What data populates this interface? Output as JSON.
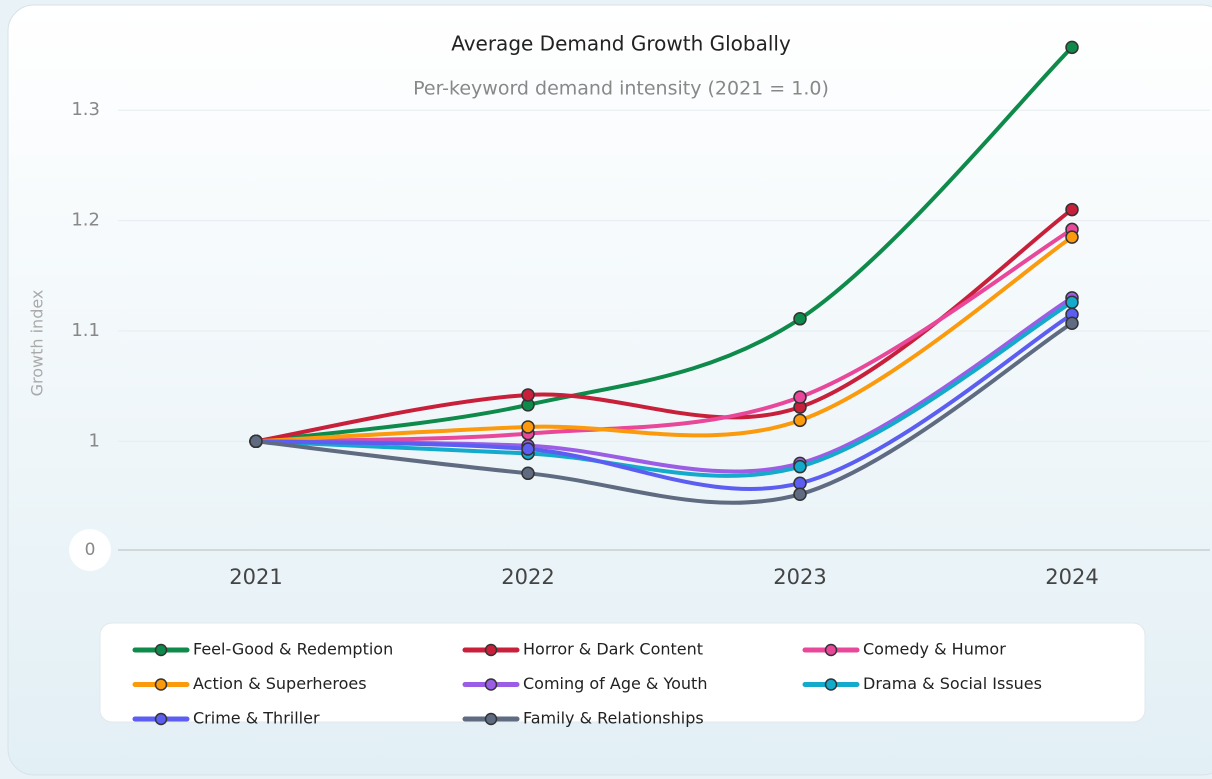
{
  "chart_data": {
    "type": "line",
    "title": "Average Demand Growth Globally",
    "subtitle": "Per-keyword demand intensity (2021 = 1.0)",
    "y_label": "Growth index",
    "y_baseline_label": "0",
    "categories": [
      "2021",
      "2022",
      "2023",
      "2024"
    ],
    "ylim": [
      0.9015,
      1.37
    ],
    "yticks": [
      1,
      1.1,
      1.2,
      1.3
    ],
    "grid": true,
    "smooth": true,
    "legend": "bottom",
    "series": [
      {
        "name": "Feel-Good & Redemption",
        "color": "#0e8a4a",
        "values": [
          1,
          1.033,
          1.111,
          1.357
        ]
      },
      {
        "name": "Horror & Dark Content",
        "color": "#c8203a",
        "values": [
          1,
          1.042,
          1.031,
          1.21
        ]
      },
      {
        "name": "Comedy & Humor",
        "color": "#e8479a",
        "values": [
          1,
          1.007,
          1.04,
          1.192
        ]
      },
      {
        "name": "Action & Superheroes",
        "color": "#fb9a0c",
        "values": [
          1,
          1.013,
          1.019,
          1.185
        ]
      },
      {
        "name": "Coming of Age & Youth",
        "color": "#9b5de5",
        "values": [
          1,
          0.996,
          0.98,
          1.13
        ]
      },
      {
        "name": "Drama & Social Issues",
        "color": "#14aacb",
        "values": [
          1,
          0.989,
          0.977,
          1.126
        ]
      },
      {
        "name": "Crime & Thriller",
        "color": "#5b5ef0",
        "values": [
          1,
          0.993,
          0.962,
          1.115
        ]
      },
      {
        "name": "Family & Relationships",
        "color": "#5f6b80",
        "values": [
          1,
          0.971,
          0.952,
          1.107
        ]
      }
    ]
  }
}
